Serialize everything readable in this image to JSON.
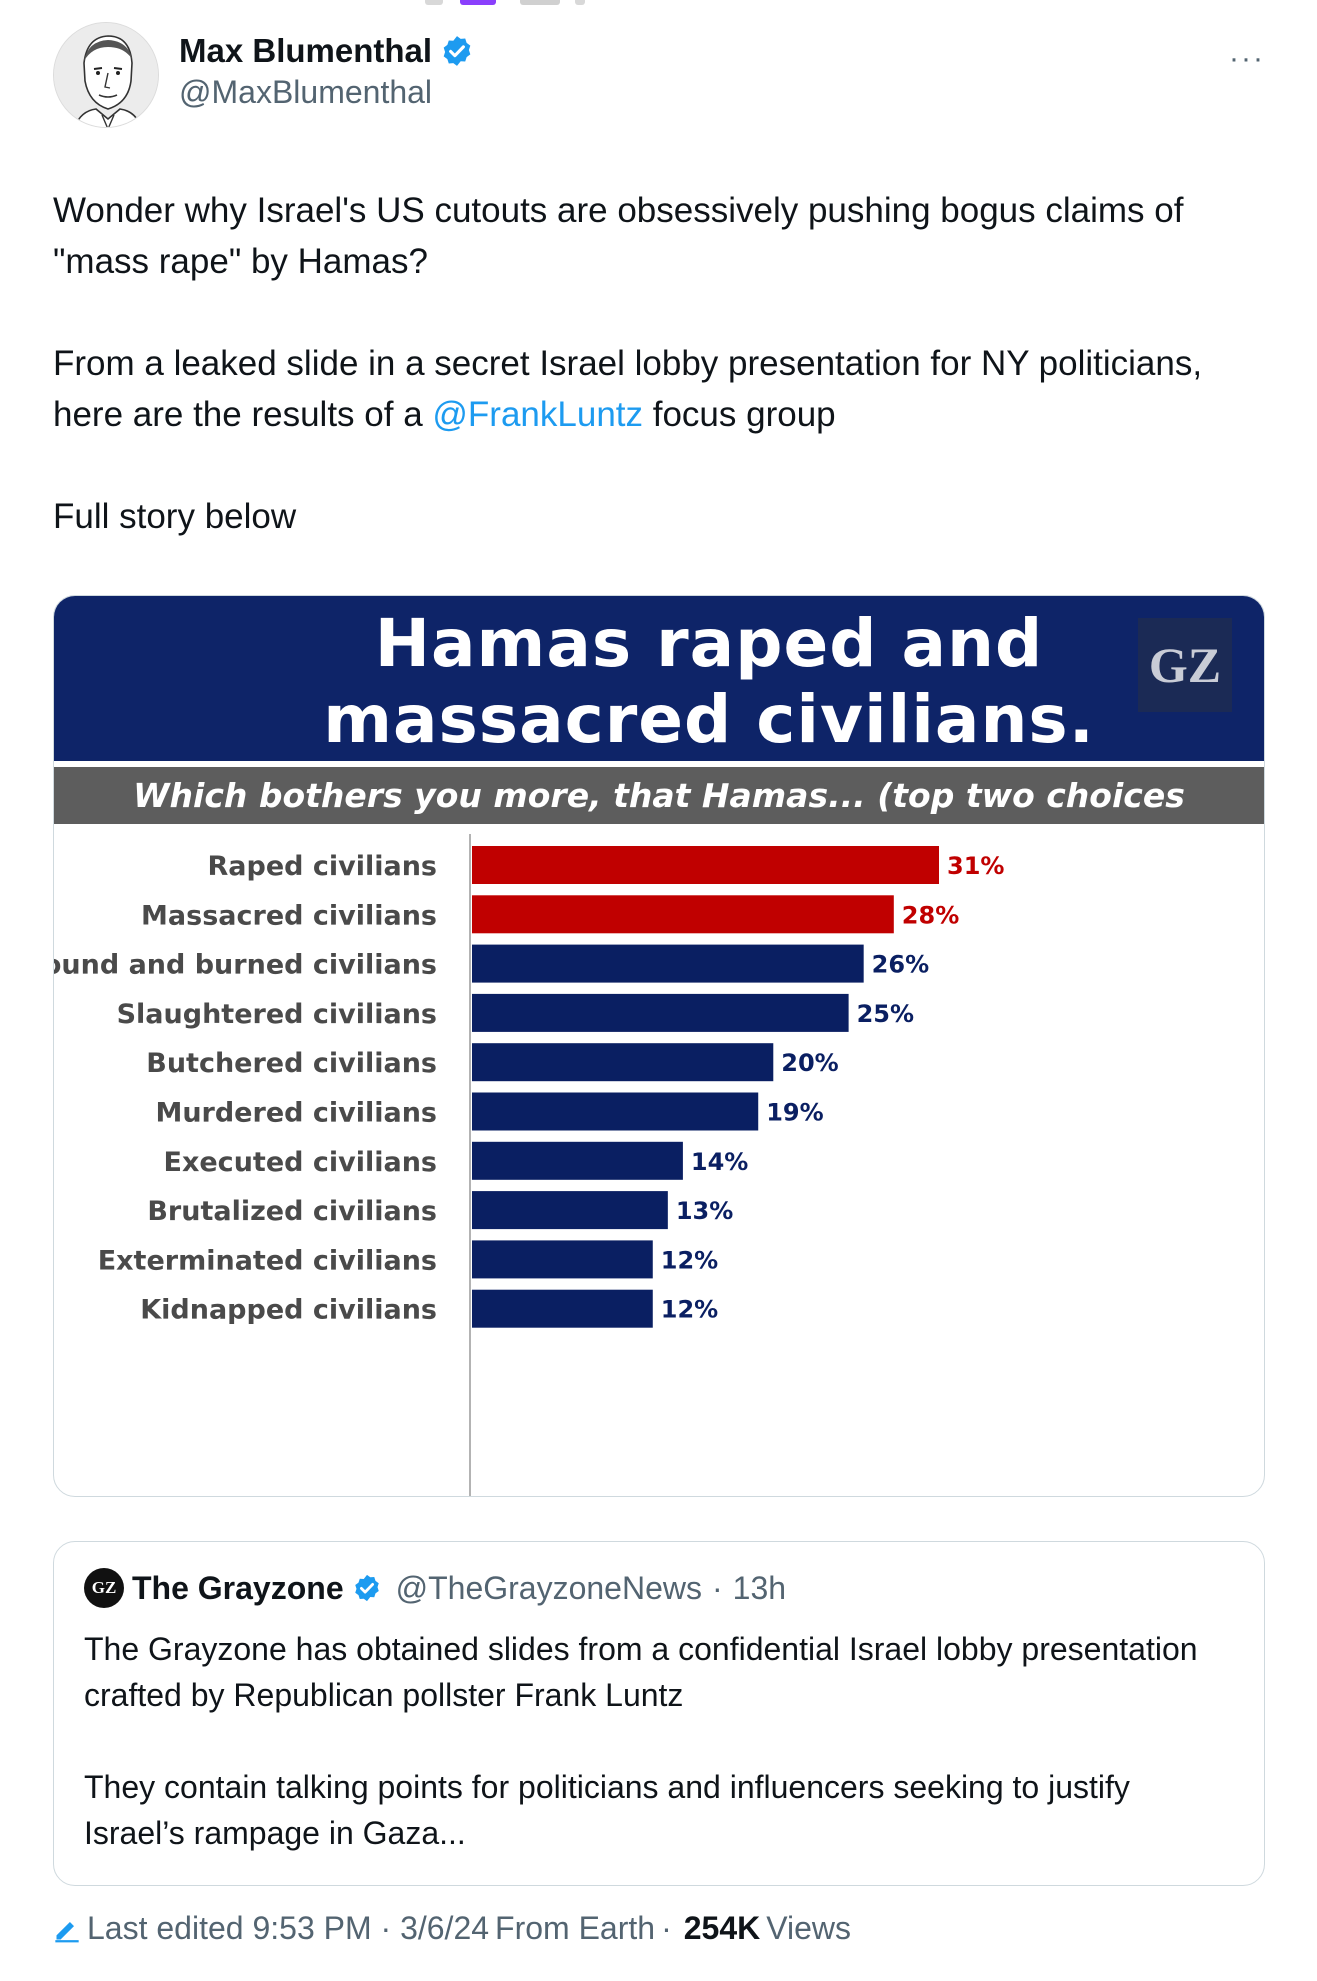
{
  "colors": {
    "brand_blue": "#1d9bf0",
    "slide_navy": "#0e2468",
    "bar_red": "#c00000",
    "bar_navy": "#0a1f62",
    "subtitle_gray": "#5d5d5d"
  },
  "author": {
    "display_name": "Max Blumenthal",
    "handle": "@MaxBlumenthal",
    "verified_icon": "verified-badge-icon",
    "more_label": "···"
  },
  "tweet": {
    "p1": "Wonder why Israel's US cutouts are obsessively pushing bogus claims of \"mass rape\" by Hamas?",
    "p2_before": "From a leaked slide in a secret Israel lobby presentation for NY politicians, here are the results of a ",
    "p2_mention": "@FrankLuntz",
    "p2_after": " focus group",
    "p3": "Full story below"
  },
  "slide": {
    "logo": "GZ",
    "title": "Hamas raped and massacred civilians.",
    "subtitle": "Which bothers you more, that Hamas... (top two choices combined)"
  },
  "chart_data": {
    "type": "bar",
    "orientation": "horizontal",
    "categories": [
      "Raped civilians",
      "Massacred civilians",
      "Bound and burned civilians",
      "Slaughtered civilians",
      "Butchered civilians",
      "Murdered civilians",
      "Executed civilians",
      "Brutalized civilians",
      "Exterminated civilians",
      "Kidnapped civilians"
    ],
    "values": [
      31,
      28,
      26,
      25,
      20,
      19,
      14,
      13,
      12,
      12
    ],
    "value_labels": [
      "31%",
      "28%",
      "26%",
      "25%",
      "20%",
      "19%",
      "14%",
      "13%",
      "12%",
      "12%"
    ],
    "highlight": [
      true,
      true,
      false,
      false,
      false,
      false,
      false,
      false,
      false,
      false
    ],
    "xlim": [
      0,
      31
    ]
  },
  "quote": {
    "avatar_text": "GZ",
    "name": "The Grayzone",
    "handle": "@TheGrayzoneNews",
    "separator": "·",
    "time": "13h",
    "p1": "The Grayzone has obtained slides from a confidential Israel lobby presentation crafted by Republican pollster Frank Luntz",
    "p2": "They contain talking points for politicians and influencers seeking to justify Israel’s rampage in Gaza..."
  },
  "footer": {
    "edited": "Last edited 9:53 PM · 3/6/24",
    "location": "From Earth",
    "separator": "·",
    "views_count": "254K",
    "views_label": "Views"
  }
}
